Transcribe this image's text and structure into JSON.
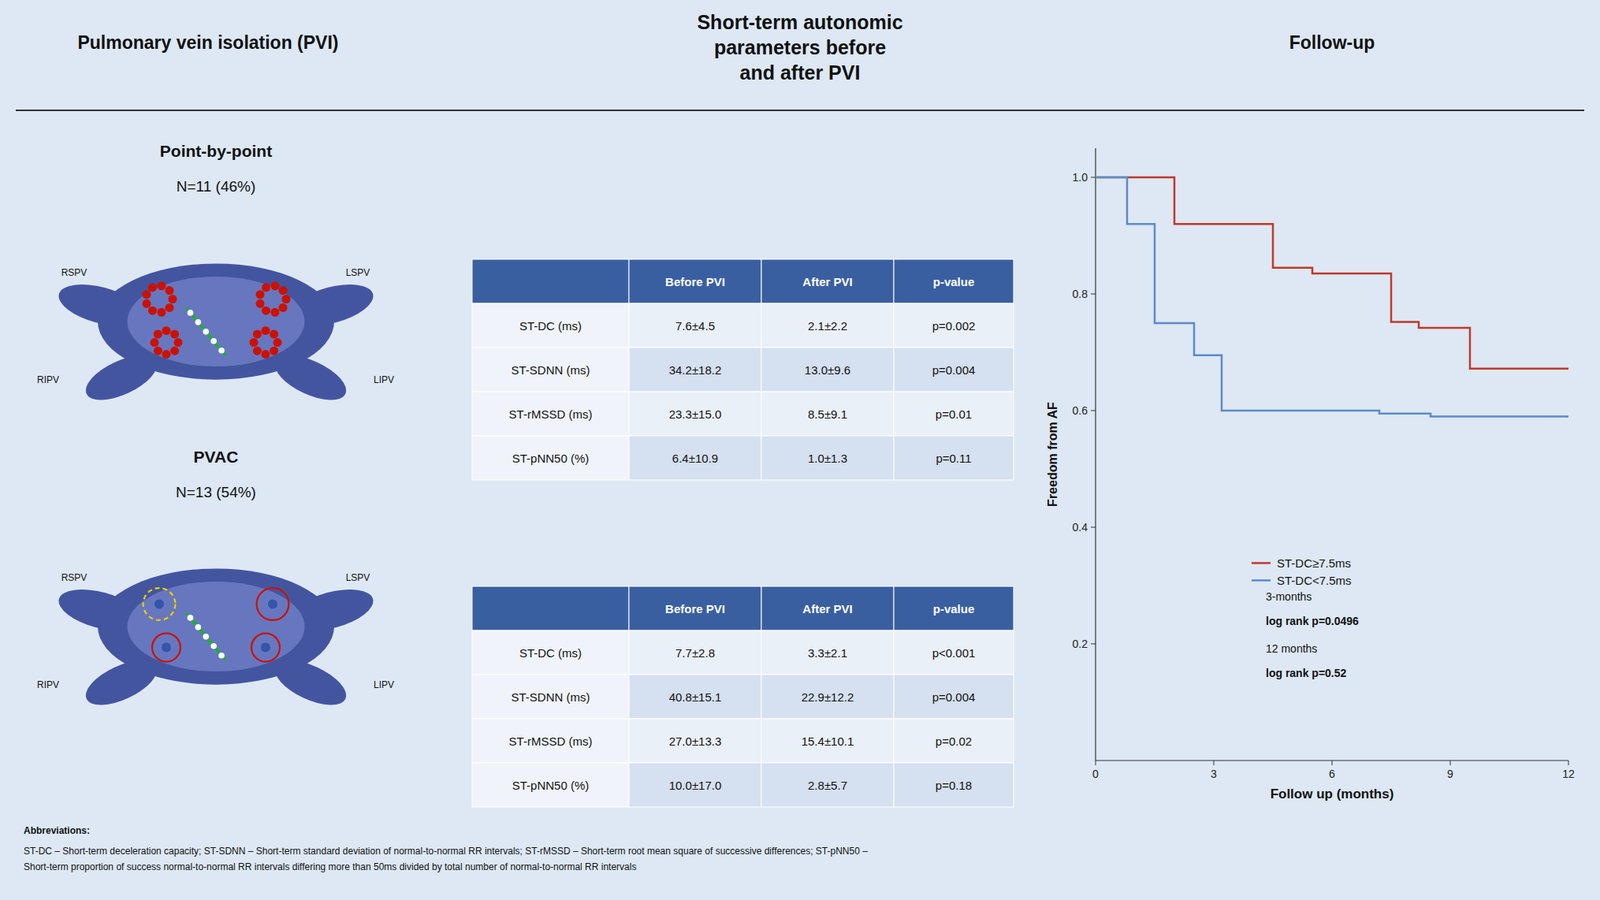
{
  "title": "Short-term autonomic\nparameters before\nand after PVI",
  "annotations": [
    "Pulmonary vein isolation (PVI)",
    "Abbreviations:",
    "ST-DC – Short-term deceleration capacity; ST-SDNN – Short-term standard deviation of normal-to-normal RR intervals; ST-rMSSD – Short-term root mean square of successive differences; ST-pNN50 –\nShort-term proportion of success normal-to-normal RR intervals differing more than 50ms divided by total number of normal-to-normal RR intervals"
  ],
  "chart_data": [
    {
      "type": "table",
      "title": "Point-by-point",
      "subtitle": "N=11 (46%)",
      "annotations": [
        "RSPV",
        "LSPV",
        "RIPV",
        "LIPV"
      ],
      "columns": [
        null,
        "Before PVI",
        "After PVI",
        "p-value"
      ],
      "rows": [
        [
          "ST-DC (ms)",
          "7.6±4.5",
          "2.1±2.2",
          "p=0.002"
        ],
        [
          "ST-SDNN (ms)",
          "34.2±18.2",
          "13.0±9.6",
          "p=0.004"
        ],
        [
          "ST-rMSSD (ms)",
          "23.3±15.0",
          "8.5±9.1",
          "p=0.01"
        ],
        [
          "ST-pNN50 (%)",
          "6.4±10.9",
          "1.0±1.3",
          "p=0.11"
        ]
      ]
    },
    {
      "type": "table",
      "title": "PVAC",
      "subtitle": "N=13 (54%)",
      "annotations": [
        "RSPV",
        "LSPV",
        "RIPV",
        "LIPV"
      ],
      "columns": [
        null,
        "Before PVI",
        "After PVI",
        "p-value"
      ],
      "rows": [
        [
          "ST-DC (ms)",
          "7.7±2.8",
          "3.3±2.1",
          "p<0.001"
        ],
        [
          "ST-SDNN (ms)",
          "40.8±15.1",
          "22.9±12.2",
          "p=0.004"
        ],
        [
          "ST-rMSSD (ms)",
          "27.0±13.3",
          "15.4±10.1",
          "p=0.02"
        ],
        [
          "ST-pNN50 (%)",
          "10.0±17.0",
          "2.8±5.7",
          "p=0.18"
        ]
      ]
    },
    {
      "type": "line",
      "title": "Follow-up",
      "x_label": "Follow up (months)",
      "y_label": "Freedom from AF",
      "xlim": [
        0,
        12
      ],
      "ylim": [
        0.0,
        1.05
      ],
      "xticks": [
        0,
        3,
        6,
        9,
        12
      ],
      "yticks": [
        0.2,
        0.4,
        0.6,
        0.8,
        {
          "value": 1.0,
          "label": "1.0"
        }
      ],
      "legend": "lower left",
      "series": [
        {
          "name": "ST-DC≥7.5ms",
          "color": "#c0392b",
          "x": [
            0,
            2.0,
            2.0,
            4.5,
            4.5,
            5.5,
            5.5,
            7.5,
            7.5,
            8.2,
            8.2,
            9.5,
            9.5,
            12.0
          ],
          "values": [
            1.0,
            1.0,
            0.92,
            0.92,
            0.845,
            0.845,
            0.835,
            0.835,
            0.752,
            0.752,
            0.742,
            0.742,
            0.672,
            0.672
          ]
        },
        {
          "name": "ST-DC<7.5ms",
          "color": "#5b8bc7",
          "x": [
            0,
            0.8,
            0.8,
            1.5,
            1.5,
            2.5,
            2.5,
            3.2,
            3.2,
            7.2,
            7.2,
            8.5,
            8.5,
            12.0
          ],
          "values": [
            1.0,
            1.0,
            0.92,
            0.92,
            0.75,
            0.75,
            0.695,
            0.695,
            0.6,
            0.6,
            0.595,
            0.595,
            0.59,
            0.59
          ]
        }
      ],
      "annotations": [
        "3-months",
        "log rank p=0.0496",
        "12 months",
        "log rank p=0.52"
      ]
    }
  ]
}
